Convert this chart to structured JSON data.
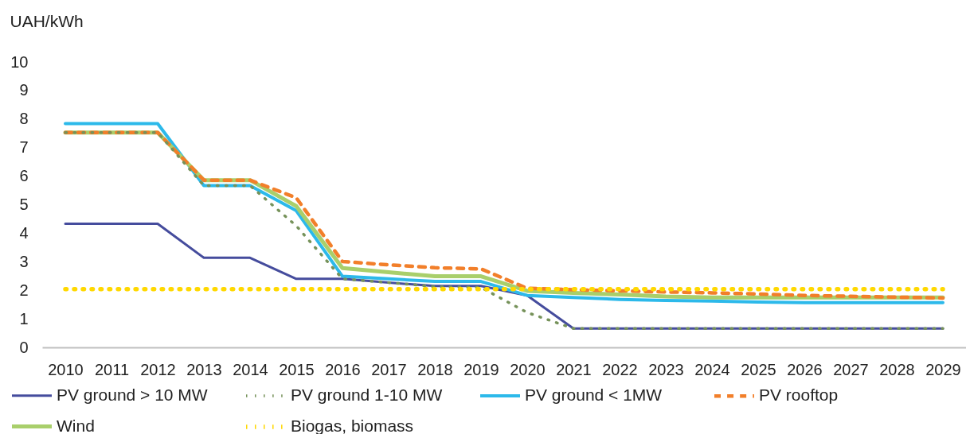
{
  "chart_data": {
    "type": "line",
    "ylabel": "UAH/kWh",
    "categories": [
      "2010",
      "2011",
      "2012",
      "2013",
      "2014",
      "2015",
      "2016",
      "2017",
      "2018",
      "2019",
      "2020",
      "2021",
      "2022",
      "2023",
      "2024",
      "2025",
      "2026",
      "2027",
      "2028",
      "2029"
    ],
    "ylim": [
      0,
      10
    ],
    "yticks": [
      0,
      1,
      2,
      3,
      4,
      5,
      6,
      7,
      8,
      9,
      10
    ],
    "grid": false,
    "legend": "bottom",
    "series": [
      {
        "name": "PV ground > 10 MW",
        "color": "#454c9d",
        "line_style": "solid",
        "values": [
          4.33,
          4.33,
          4.33,
          3.14,
          3.14,
          2.4,
          2.4,
          2.27,
          2.15,
          2.15,
          1.82,
          0.66,
          0.66,
          0.66,
          0.66,
          0.66,
          0.66,
          0.66,
          0.66,
          0.66
        ]
      },
      {
        "name": "PV ground 1-10 MW",
        "color": "#76925a",
        "line_style": "dotted",
        "values": [
          7.53,
          7.53,
          7.53,
          5.67,
          5.67,
          4.26,
          2.4,
          2.27,
          2.13,
          2.1,
          1.22,
          0.66,
          0.66,
          0.66,
          0.66,
          0.66,
          0.66,
          0.66,
          0.66,
          0.66
        ]
      },
      {
        "name": "PV ground < 1MW",
        "color": "#2cb9ea",
        "line_style": "solid",
        "values": [
          7.84,
          7.84,
          7.84,
          5.67,
          5.67,
          4.79,
          2.49,
          2.4,
          2.31,
          2.31,
          1.82,
          1.75,
          1.68,
          1.64,
          1.62,
          1.59,
          1.57,
          1.57,
          1.57,
          1.57
        ]
      },
      {
        "name": "PV rooftop",
        "color": "#f27f2a",
        "line_style": "dashed",
        "values": [
          7.53,
          7.53,
          7.53,
          5.86,
          5.86,
          5.24,
          3.01,
          2.89,
          2.79,
          2.75,
          2.07,
          2.02,
          1.98,
          1.94,
          1.91,
          1.87,
          1.82,
          1.79,
          1.76,
          1.73
        ]
      },
      {
        "name": "Wind",
        "color": "#a9cf6b",
        "line_style": "solid",
        "values": [
          7.53,
          7.53,
          7.53,
          5.86,
          5.86,
          4.95,
          2.78,
          2.63,
          2.49,
          2.49,
          1.98,
          1.91,
          1.85,
          1.78,
          1.75,
          1.75,
          1.75,
          1.75,
          1.75,
          1.75
        ]
      },
      {
        "name": "Biogas, biomass",
        "color": "#ffd800",
        "line_style": "dotted",
        "values": [
          2.04,
          2.04,
          2.04,
          2.04,
          2.04,
          2.04,
          2.04,
          2.04,
          2.04,
          2.04,
          2.04,
          2.04,
          2.04,
          2.04,
          2.04,
          2.04,
          2.04,
          2.04,
          2.04,
          2.04
        ]
      }
    ]
  }
}
